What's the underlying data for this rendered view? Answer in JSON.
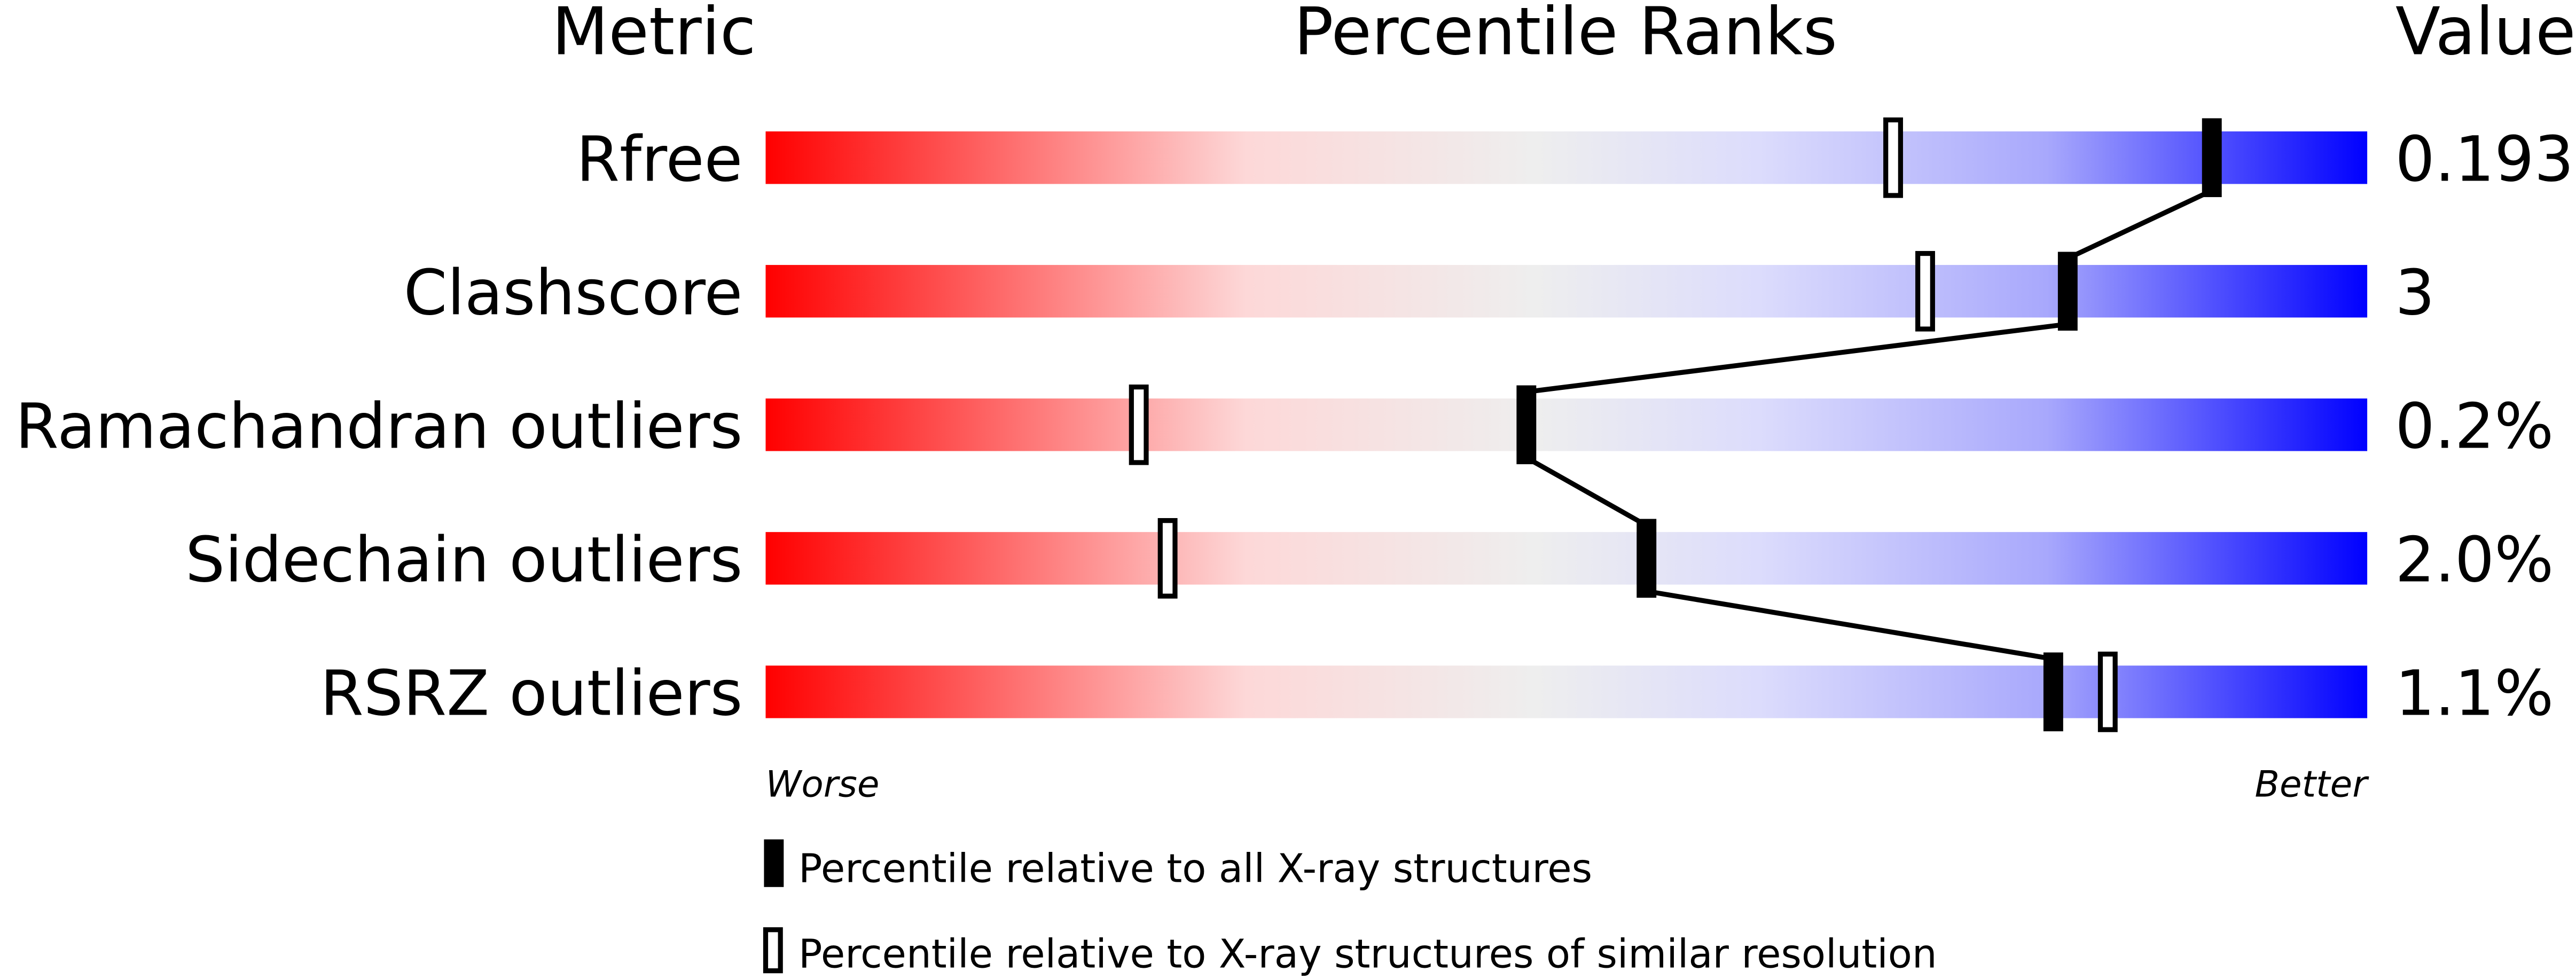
{
  "chart_data": {
    "type": "percentile-bar",
    "headers": {
      "metric": "Metric",
      "percentile": "Percentile Ranks",
      "value": "Value"
    },
    "xlim": [
      0,
      100
    ],
    "axis_labels": {
      "left": "Worse",
      "right": "Better"
    },
    "gradient_colors": [
      "#ff0000",
      "#fdd8d8",
      "#eeeeee",
      "#dcdcfc",
      "#a8a8fc",
      "#0000ff"
    ],
    "rows": [
      {
        "metric": "Rfree",
        "value": "0.193",
        "percentile_all": 90.3,
        "percentile_similar": 70.4
      },
      {
        "metric": "Clashscore",
        "value": "3",
        "percentile_all": 81.3,
        "percentile_similar": 72.4
      },
      {
        "metric": "Ramachandran outliers",
        "value": "0.2%",
        "percentile_all": 47.5,
        "percentile_similar": 23.3
      },
      {
        "metric": "Sidechain outliers",
        "value": "2.0%",
        "percentile_all": 55.0,
        "percentile_similar": 25.1
      },
      {
        "metric": "RSRZ outliers",
        "value": "1.1%",
        "percentile_all": 80.4,
        "percentile_similar": 83.8
      }
    ],
    "legend": [
      {
        "marker": "filled",
        "label": "Percentile relative to all X-ray structures"
      },
      {
        "marker": "open",
        "label": "Percentile relative to X-ray structures of similar resolution"
      }
    ]
  }
}
